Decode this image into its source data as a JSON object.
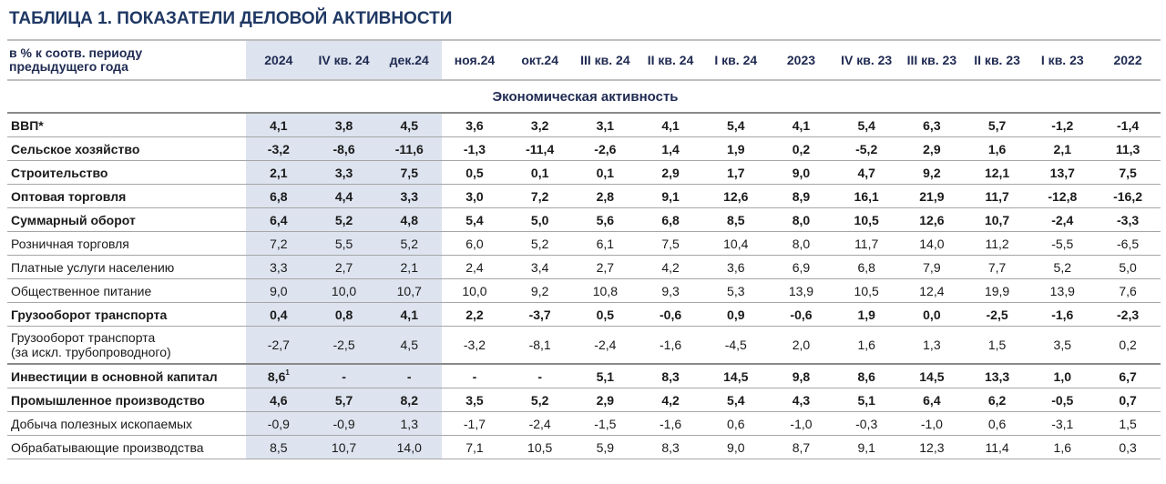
{
  "title": "ТАБЛИЦА 1. ПОКАЗАТЕЛИ ДЕЛОВОЙ АКТИВНОСТИ",
  "header": {
    "label_line1": "в % к соотв. периоду",
    "label_line2": "предыдущего года",
    "columns": [
      "2024",
      "IV кв. 24",
      "дек.24",
      "ноя.24",
      "окт.24",
      "III кв. 24",
      "II кв. 24",
      "I кв. 24",
      "2023",
      "IV кв. 23",
      "III кв. 23",
      "II кв. 23",
      "I кв. 23",
      "2022"
    ]
  },
  "highlight_color": "#dde4ef",
  "title_color": "#1f3864",
  "section": "Экономическая активность",
  "rows": [
    {
      "label": "ВВП*",
      "bold": true,
      "values": [
        "4,1",
        "3,8",
        "4,5",
        "3,6",
        "3,2",
        "3,1",
        "4,1",
        "5,4",
        "4,1",
        "5,4",
        "6,3",
        "5,7",
        "-1,2",
        "-1,4"
      ]
    },
    {
      "label": "Сельское хозяйство",
      "bold": true,
      "values": [
        "-3,2",
        "-8,6",
        "-11,6",
        "-1,3",
        "-11,4",
        "-2,6",
        "1,4",
        "1,9",
        "0,2",
        "-5,2",
        "2,9",
        "1,6",
        "2,1",
        "11,3"
      ]
    },
    {
      "label": "Строительство",
      "bold": true,
      "values": [
        "2,1",
        "3,3",
        "7,5",
        "0,5",
        "0,1",
        "0,1",
        "2,9",
        "1,7",
        "9,0",
        "4,7",
        "9,2",
        "12,1",
        "13,7",
        "7,5"
      ]
    },
    {
      "label": "Оптовая торговля",
      "bold": true,
      "values": [
        "6,8",
        "4,4",
        "3,3",
        "3,0",
        "7,2",
        "2,8",
        "9,1",
        "12,6",
        "8,9",
        "16,1",
        "21,9",
        "11,7",
        "-12,8",
        "-16,2"
      ]
    },
    {
      "label": "Суммарный оборот",
      "bold": true,
      "values": [
        "6,4",
        "5,2",
        "4,8",
        "5,4",
        "5,0",
        "5,6",
        "6,8",
        "8,5",
        "8,0",
        "10,5",
        "12,6",
        "10,7",
        "-2,4",
        "-3,3"
      ]
    },
    {
      "label": "Розничная торговля",
      "bold": false,
      "values": [
        "7,2",
        "5,5",
        "5,2",
        "6,0",
        "5,2",
        "6,1",
        "7,5",
        "10,4",
        "8,0",
        "11,7",
        "14,0",
        "11,2",
        "-5,5",
        "-6,5"
      ]
    },
    {
      "label": "Платные услуги населению",
      "bold": false,
      "values": [
        "3,3",
        "2,7",
        "2,1",
        "2,4",
        "3,4",
        "2,7",
        "4,2",
        "3,6",
        "6,9",
        "6,8",
        "7,9",
        "7,7",
        "5,2",
        "5,0"
      ]
    },
    {
      "label": "Общественное питание",
      "bold": false,
      "values": [
        "9,0",
        "10,0",
        "10,7",
        "10,0",
        "9,2",
        "10,8",
        "9,3",
        "5,3",
        "13,9",
        "10,5",
        "12,4",
        "19,9",
        "13,9",
        "7,6"
      ]
    },
    {
      "label": "Грузооборот транспорта",
      "bold": true,
      "values": [
        "0,4",
        "0,8",
        "4,1",
        "2,2",
        "-3,7",
        "0,5",
        "-0,6",
        "0,9",
        "-0,6",
        "1,9",
        "0,0",
        "-2,5",
        "-1,6",
        "-2,3"
      ]
    },
    {
      "label_line1": "Грузооборот транспорта",
      "label_line2": "(за искл. трубопроводного)",
      "bold": false,
      "values": [
        "-2,7",
        "-2,5",
        "4,5",
        "-3,2",
        "-8,1",
        "-2,4",
        "-1,6",
        "-4,5",
        "2,0",
        "1,6",
        "1,3",
        "1,5",
        "3,5",
        "0,2"
      ]
    },
    {
      "label": "Инвестиции в основной капитал",
      "bold": true,
      "first_value": "8,6",
      "first_sup": "1",
      "values": [
        "",
        "-",
        "-",
        "-",
        "-",
        "5,1",
        "8,3",
        "14,5",
        "9,8",
        "8,6",
        "14,5",
        "13,3",
        "1,0",
        "6,7"
      ]
    },
    {
      "label": "Промышленное производство",
      "bold": true,
      "values": [
        "4,6",
        "5,7",
        "8,2",
        "3,5",
        "5,2",
        "2,9",
        "4,2",
        "5,4",
        "4,3",
        "5,1",
        "6,4",
        "6,2",
        "-0,5",
        "0,7"
      ]
    },
    {
      "label": "Добыча полезных ископаемых",
      "bold": false,
      "values": [
        "-0,9",
        "-0,9",
        "1,3",
        "-1,7",
        "-2,4",
        "-1,5",
        "-1,6",
        "0,6",
        "-1,0",
        "-0,3",
        "-1,0",
        "0,6",
        "-3,1",
        "1,5"
      ]
    },
    {
      "label": "Обрабатывающие производства",
      "bold": false,
      "values": [
        "8,5",
        "10,7",
        "14,0",
        "7,1",
        "10,5",
        "5,9",
        "8,3",
        "9,0",
        "8,7",
        "9,1",
        "12,3",
        "11,4",
        "1,6",
        "0,3"
      ]
    }
  ]
}
